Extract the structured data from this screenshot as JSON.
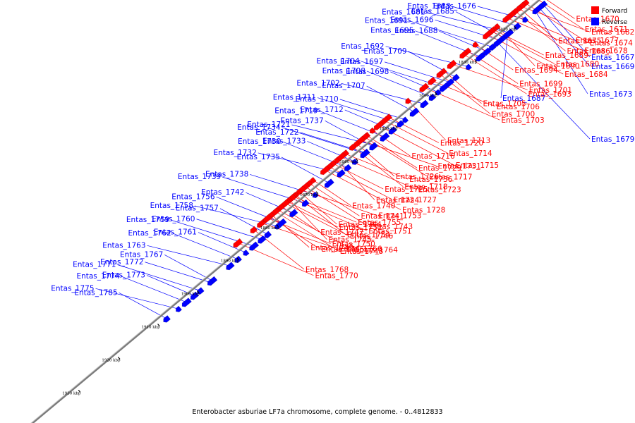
{
  "colors": {
    "forward": "#ff0000",
    "reverse": "#0000ff",
    "axis": "#888888"
  },
  "legend": {
    "forward_label": "Forward",
    "reverse_label": "Reverse"
  },
  "caption": "Enterobacter asburiae LF7a chromosome, complete genome. - 0..4812833",
  "ticks": [
    {
      "label": "1820 kbp",
      "kbp": 1820
    },
    {
      "label": "1830 kbp",
      "kbp": 1830
    },
    {
      "label": "1840 kbp",
      "kbp": 1840
    },
    {
      "label": "1850 kbp",
      "kbp": 1850
    },
    {
      "label": "1860 kbp",
      "kbp": 1860
    },
    {
      "label": "1870 kbp",
      "kbp": 1870
    },
    {
      "label": "1880 kbp",
      "kbp": 1880
    },
    {
      "label": "1890 kbp",
      "kbp": 1890
    },
    {
      "label": "1900 kbp",
      "kbp": 1900
    },
    {
      "label": "1910 kbp",
      "kbp": 1910
    },
    {
      "label": "1920 kbp",
      "kbp": 1920
    },
    {
      "label": "1930 kbp",
      "kbp": 1930
    },
    {
      "label": "1940 kbp",
      "kbp": 1940
    }
  ],
  "reverse_genes": [
    {
      "name": "Entas_1676",
      "kbp": 1817.5
    },
    {
      "name": "Entas_1683",
      "kbp": 1819.5
    },
    {
      "name": "Entas_1681",
      "kbp": 1821.5
    },
    {
      "name": "Entas_1685",
      "kbp": 1823.0
    },
    {
      "name": "Entas_1696",
      "kbp": 1823.8
    },
    {
      "name": "Entas_1691",
      "kbp": 1825.8
    },
    {
      "name": "Entas_1688",
      "kbp": 1827.2
    },
    {
      "name": "Entas_1695",
      "kbp": 1828.8
    },
    {
      "name": "Entas_1692",
      "kbp": 1831.8
    },
    {
      "name": "Entas_1709",
      "kbp": 1835.0
    },
    {
      "name": "Entas_1697",
      "kbp": 1836.5
    },
    {
      "name": "Entas_1704",
      "kbp": 1838.0
    },
    {
      "name": "Entas_1698",
      "kbp": 1839.5
    },
    {
      "name": "Entas_1708",
      "kbp": 1841.0
    },
    {
      "name": "Entas_1702",
      "kbp": 1843.0
    },
    {
      "name": "Entas_1707",
      "kbp": 1845.5
    },
    {
      "name": "Entas_1710",
      "kbp": 1847.8
    },
    {
      "name": "Entas_1711",
      "kbp": 1849.0
    },
    {
      "name": "Entas_1712",
      "kbp": 1851.0
    },
    {
      "name": "Entas_1719",
      "kbp": 1853.0
    },
    {
      "name": "Entas_1721",
      "kbp": 1855.5
    },
    {
      "name": "Entas_1737",
      "kbp": 1856.0
    },
    {
      "name": "Entas_1722",
      "kbp": 1857.8
    },
    {
      "name": "Entas_1734",
      "kbp": 1858.0
    },
    {
      "name": "Entas_1733",
      "kbp": 1860.5
    },
    {
      "name": "Entas_1730",
      "kbp": 1862.3
    },
    {
      "name": "Entas_1732",
      "kbp": 1864.0
    },
    {
      "name": "Entas_1735",
      "kbp": 1867.0
    },
    {
      "name": "Entas_1738",
      "kbp": 1870.5
    },
    {
      "name": "Entas_1739",
      "kbp": 1873.0
    },
    {
      "name": "Entas_1742",
      "kbp": 1876.0
    },
    {
      "name": "Entas_1756",
      "kbp": 1879.0
    },
    {
      "name": "Entas_1758",
      "kbp": 1880.0
    },
    {
      "name": "Entas_1757",
      "kbp": 1882.5
    },
    {
      "name": "Entas_1760",
      "kbp": 1884.0
    },
    {
      "name": "Entas_1759",
      "kbp": 1886.0
    },
    {
      "name": "Entas_1761",
      "kbp": 1888.0
    },
    {
      "name": "Entas_1762",
      "kbp": 1890.0
    },
    {
      "name": "Entas_1763",
      "kbp": 1892.0
    },
    {
      "name": "Entas_1767",
      "kbp": 1896.5
    },
    {
      "name": "Entas_1772",
      "kbp": 1897.0
    },
    {
      "name": "Entas_1771",
      "kbp": 1899.5
    },
    {
      "name": "Entas_1773",
      "kbp": 1901.0
    },
    {
      "name": "Entas_1774",
      "kbp": 1903.0
    },
    {
      "name": "Entas_1775",
      "kbp": 1905.0
    },
    {
      "name": "Entas_1785",
      "kbp": 1908.0
    },
    {
      "name": "Entas_1667",
      "kbp": 1813.0
    },
    {
      "name": "Entas_1669",
      "kbp": 1814.0
    },
    {
      "name": "Entas_1673",
      "kbp": 1815.0
    },
    {
      "name": "Entas_1687",
      "kbp": 1822.0
    },
    {
      "name": "Entas_1679",
      "kbp": 1824.5
    }
  ],
  "forward_genes": [
    {
      "name": "Entas_1670",
      "kbp": 1812.5
    },
    {
      "name": "Entas_1671",
      "kbp": 1813.5
    },
    {
      "name": "Entas_1674",
      "kbp": 1815.5
    },
    {
      "name": "Entas_1682",
      "kbp": 1816.5
    },
    {
      "name": "Entas_1675",
      "kbp": 1817.0
    },
    {
      "name": "Entas_1686",
      "kbp": 1818.0
    },
    {
      "name": "Entas_1677",
      "kbp": 1819.0
    },
    {
      "name": "Entas_1678",
      "kbp": 1820.0
    },
    {
      "name": "Entas_1690",
      "kbp": 1822.5
    },
    {
      "name": "Entas_1689",
      "kbp": 1823.5
    },
    {
      "name": "Entas_1680",
      "kbp": 1824.0
    },
    {
      "name": "Entas_1684",
      "kbp": 1825.0
    },
    {
      "name": "Entas_1694",
      "kbp": 1828.0
    },
    {
      "name": "Entas_1699",
      "kbp": 1830.0
    },
    {
      "name": "Entas_1693",
      "kbp": 1831.0
    },
    {
      "name": "Entas_1701",
      "kbp": 1834.0
    },
    {
      "name": "Entas_1705",
      "kbp": 1836.0
    },
    {
      "name": "Entas_1700",
      "kbp": 1837.0
    },
    {
      "name": "Entas_1706",
      "kbp": 1839.0
    },
    {
      "name": "Entas_1703",
      "kbp": 1841.0
    },
    {
      "name": "Entas_1713",
      "kbp": 1845.0
    },
    {
      "name": "Entas_1720",
      "kbp": 1850.0
    },
    {
      "name": "Entas_1714",
      "kbp": 1851.0
    },
    {
      "name": "Entas_1715",
      "kbp": 1852.5
    },
    {
      "name": "Entas_1716",
      "kbp": 1854.0
    },
    {
      "name": "Entas_1729",
      "kbp": 1855.5
    },
    {
      "name": "Entas_1717",
      "kbp": 1856.0
    },
    {
      "name": "Entas_1731",
      "kbp": 1857.0
    },
    {
      "name": "Entas_1726",
      "kbp": 1858.0
    },
    {
      "name": "Entas_1718",
      "kbp": 1859.0
    },
    {
      "name": "Entas_1736",
      "kbp": 1861.0
    },
    {
      "name": "Entas_1723",
      "kbp": 1862.0
    },
    {
      "name": "Entas_1724",
      "kbp": 1863.0
    },
    {
      "name": "Entas_1725",
      "kbp": 1864.0
    },
    {
      "name": "Entas_1727",
      "kbp": 1865.0
    },
    {
      "name": "Entas_1728",
      "kbp": 1866.0
    },
    {
      "name": "Entas_1740",
      "kbp": 1869.0
    },
    {
      "name": "Entas_1741",
      "kbp": 1870.0
    },
    {
      "name": "Entas_1743",
      "kbp": 1871.0
    },
    {
      "name": "Entas_1753",
      "kbp": 1872.0
    },
    {
      "name": "Entas_1744",
      "kbp": 1872.5
    },
    {
      "name": "Entas_1754",
      "kbp": 1873.5
    },
    {
      "name": "Entas_1755",
      "kbp": 1874.0
    },
    {
      "name": "Entas_1751",
      "kbp": 1874.5
    },
    {
      "name": "Entas_1745",
      "kbp": 1875.0
    },
    {
      "name": "Entas_1752",
      "kbp": 1875.5
    },
    {
      "name": "Entas_1746",
      "kbp": 1876.0
    },
    {
      "name": "Entas_1764",
      "kbp": 1878.0
    },
    {
      "name": "Entas_1747",
      "kbp": 1877.0
    },
    {
      "name": "Entas_1765",
      "kbp": 1880.0
    },
    {
      "name": "Entas_1748",
      "kbp": 1878.5
    },
    {
      "name": "Entas_1766",
      "kbp": 1882.0
    },
    {
      "name": "Entas_1749",
      "kbp": 1879.5
    },
    {
      "name": "Entas_1768",
      "kbp": 1884.0
    },
    {
      "name": "Entas_1750",
      "kbp": 1880.5
    },
    {
      "name": "Entas_1770",
      "kbp": 1888.0
    }
  ]
}
